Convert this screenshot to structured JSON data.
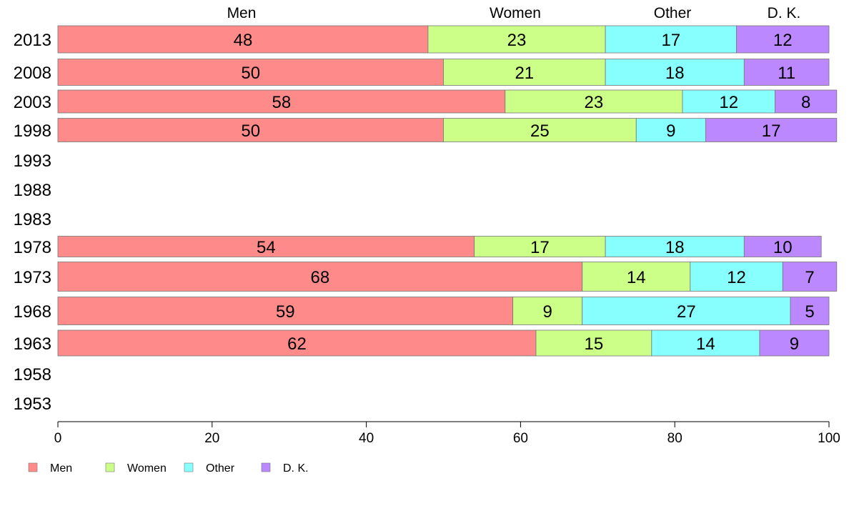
{
  "chart_data": {
    "type": "bar",
    "orientation": "horizontal",
    "stacked": true,
    "categories": [
      "2013",
      "2008",
      "2003",
      "1998",
      "1993",
      "1988",
      "1983",
      "1978",
      "1973",
      "1968",
      "1963",
      "1958",
      "1953"
    ],
    "series": [
      {
        "name": "Men",
        "color": "#ff8a8a",
        "values": [
          48,
          50,
          58,
          50,
          null,
          null,
          null,
          54,
          68,
          59,
          62,
          null,
          null
        ]
      },
      {
        "name": "Women",
        "color": "#ccff88",
        "values": [
          23,
          21,
          23,
          25,
          null,
          null,
          null,
          17,
          14,
          9,
          15,
          null,
          null
        ]
      },
      {
        "name": "Other",
        "color": "#88ffff",
        "values": [
          17,
          18,
          12,
          9,
          null,
          null,
          null,
          18,
          12,
          27,
          14,
          null,
          null
        ]
      },
      {
        "name": "D. K.",
        "color": "#bb88ff",
        "values": [
          12,
          11,
          8,
          17,
          null,
          null,
          null,
          10,
          7,
          5,
          9,
          null,
          null
        ]
      }
    ],
    "xlim": [
      0,
      100
    ],
    "xticks": [
      0,
      20,
      40,
      60,
      80,
      100
    ],
    "grid": false,
    "legend_position": "bottom-left",
    "top_labels": [
      "Men",
      "Women",
      "Other",
      "D. K."
    ]
  }
}
